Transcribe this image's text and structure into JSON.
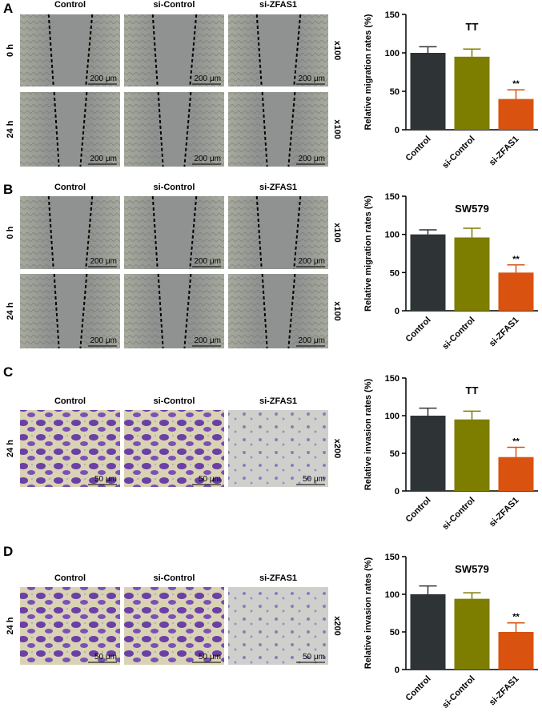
{
  "panels": [
    {
      "label": "A",
      "columns": [
        "Control",
        "si-Control",
        "si-ZFAS1"
      ],
      "scale_bar": "200 μm",
      "assay": "wound",
      "rows": [
        {
          "label": "0 h",
          "magnification": "x100"
        },
        {
          "label": "24 h",
          "magnification": "x100"
        }
      ]
    },
    {
      "label": "B",
      "columns": [
        "Control",
        "si-Control",
        "si-ZFAS1"
      ],
      "scale_bar": "200 μm",
      "assay": "wound",
      "rows": [
        {
          "label": "0 h",
          "magnification": "x100"
        },
        {
          "label": "24 h",
          "magnification": "x100"
        }
      ]
    },
    {
      "label": "C",
      "columns": [
        "Control",
        "si-Control",
        "si-ZFAS1"
      ],
      "scale_bar": "50 μm",
      "assay": "invasion",
      "rows": [
        {
          "label": "24 h",
          "magnification": "x200"
        }
      ]
    },
    {
      "label": "D",
      "columns": [
        "Control",
        "si-Control",
        "si-ZFAS1"
      ],
      "scale_bar": "50 μm",
      "assay": "invasion",
      "rows": [
        {
          "label": "24 h",
          "magnification": "x200"
        }
      ]
    }
  ],
  "chart_data": [
    {
      "type": "bar",
      "title": "TT",
      "ylabel": "Relative migration rates (%)",
      "categories": [
        "Control",
        "si-Control",
        "si-ZFAS1"
      ],
      "values": [
        100,
        95,
        40
      ],
      "errors": [
        8,
        10,
        12
      ],
      "colors": [
        "#2e3436",
        "#7d7d00",
        "#d9520f"
      ],
      "ylim": [
        0,
        150
      ],
      "yticks": [
        0,
        50,
        100,
        150
      ],
      "annotations": [
        {
          "index": 2,
          "text": "**"
        }
      ]
    },
    {
      "type": "bar",
      "title": "SW579",
      "ylabel": "Relative migration rates (%)",
      "categories": [
        "Control",
        "si-Control",
        "si-ZFAS1"
      ],
      "values": [
        100,
        96,
        50
      ],
      "errors": [
        6,
        12,
        10
      ],
      "colors": [
        "#2e3436",
        "#7d7d00",
        "#d9520f"
      ],
      "ylim": [
        0,
        150
      ],
      "yticks": [
        0,
        50,
        100,
        150
      ],
      "annotations": [
        {
          "index": 2,
          "text": "**"
        }
      ]
    },
    {
      "type": "bar",
      "title": "TT",
      "ylabel": "Relative invasion rates (%)",
      "categories": [
        "Control",
        "si-Control",
        "si-ZFAS1"
      ],
      "values": [
        100,
        95,
        45
      ],
      "errors": [
        10,
        11,
        13
      ],
      "colors": [
        "#2e3436",
        "#7d7d00",
        "#d9520f"
      ],
      "ylim": [
        0,
        150
      ],
      "yticks": [
        0,
        50,
        100,
        150
      ],
      "annotations": [
        {
          "index": 2,
          "text": "**"
        }
      ]
    },
    {
      "type": "bar",
      "title": "SW579",
      "ylabel": "Relative invasion rates (%)",
      "categories": [
        "Control",
        "si-Control",
        "si-ZFAS1"
      ],
      "values": [
        100,
        94,
        50
      ],
      "errors": [
        11,
        8,
        12
      ],
      "colors": [
        "#2e3436",
        "#7d7d00",
        "#d9520f"
      ],
      "ylim": [
        0,
        150
      ],
      "yticks": [
        0,
        50,
        100,
        150
      ],
      "annotations": [
        {
          "index": 2,
          "text": "**"
        }
      ]
    }
  ]
}
